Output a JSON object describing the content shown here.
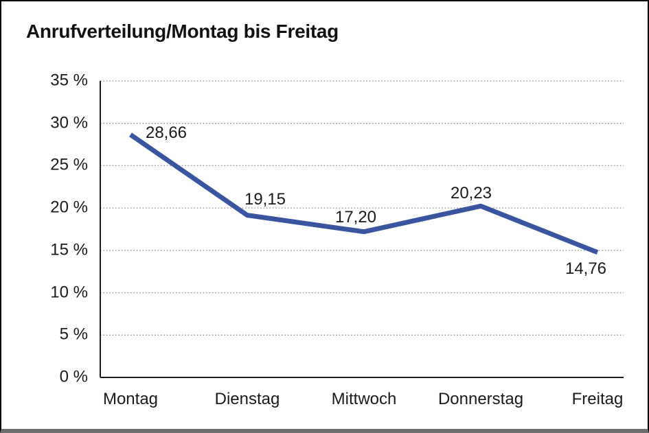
{
  "window": {
    "background": "#ffffff",
    "border_color": "#000000",
    "bottom_edge_color": "#6f6f6f"
  },
  "chart_data": {
    "type": "line",
    "title": "Anrufverteilung/Montag bis Freitag",
    "categories": [
      "Montag",
      "Dienstag",
      "Mittwoch",
      "Donnerstag",
      "Freitag"
    ],
    "series": [
      {
        "name": "Anrufverteilung",
        "values": [
          28.66,
          19.15,
          17.2,
          20.23,
          14.76
        ],
        "color": "#3A55A0"
      }
    ],
    "value_labels": [
      "28,66",
      "19,15",
      "17,20",
      "20,23",
      "14,76"
    ],
    "xlabel": "",
    "ylabel": "",
    "ylim": [
      0,
      35
    ],
    "ytick_step": 5,
    "ytick_labels": [
      "0 %",
      "5 %",
      "10 %",
      "15 %",
      "20 %",
      "25 %",
      "30 %",
      "35 %"
    ],
    "grid": "horizontal dotted",
    "gridline_color": "#8c8c8c",
    "axis_color": "#1a1a1a",
    "text_color": "#1a1a1a",
    "legend_position": "none"
  }
}
